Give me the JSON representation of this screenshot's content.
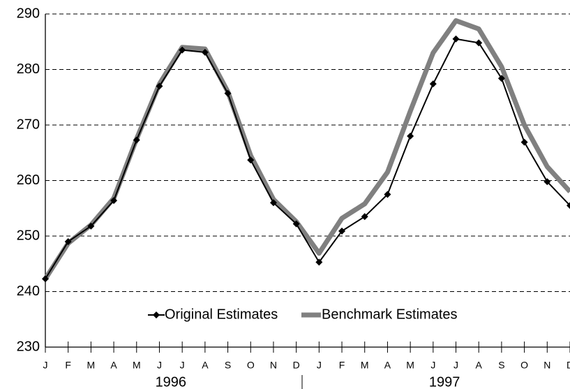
{
  "chart_data": {
    "type": "line",
    "categories": [
      "J",
      "F",
      "M",
      "A",
      "M",
      "J",
      "J",
      "A",
      "S",
      "O",
      "N",
      "D",
      "J",
      "F",
      "M",
      "A",
      "M",
      "J",
      "J",
      "A",
      "S",
      "O",
      "N",
      "D"
    ],
    "year_labels": [
      "1996",
      "1997"
    ],
    "series": [
      {
        "name": "Original Estimates",
        "color": "#000000",
        "values": [
          242.3,
          249,
          251.8,
          256.4,
          267.3,
          277,
          283.5,
          283.1,
          275.7,
          263.7,
          256,
          252.2,
          245.3,
          250.9,
          253.5,
          257.5,
          268,
          277.4,
          285.5,
          284.8,
          278.4,
          266.9,
          259.8,
          255.5
        ]
      },
      {
        "name": "Benchmark Estimates",
        "color": "#808080",
        "values": [
          242.3,
          248.7,
          252,
          256.8,
          267.5,
          277.4,
          284,
          283.7,
          276,
          264.5,
          256.6,
          252.6,
          246.9,
          253.2,
          255.8,
          261.5,
          272.5,
          283,
          288.8,
          287.3,
          280.5,
          270,
          262.5,
          258
        ]
      }
    ],
    "ylim": [
      230,
      290
    ],
    "yticks": [
      230,
      240,
      250,
      260,
      270,
      280,
      290
    ],
    "grid": true
  }
}
